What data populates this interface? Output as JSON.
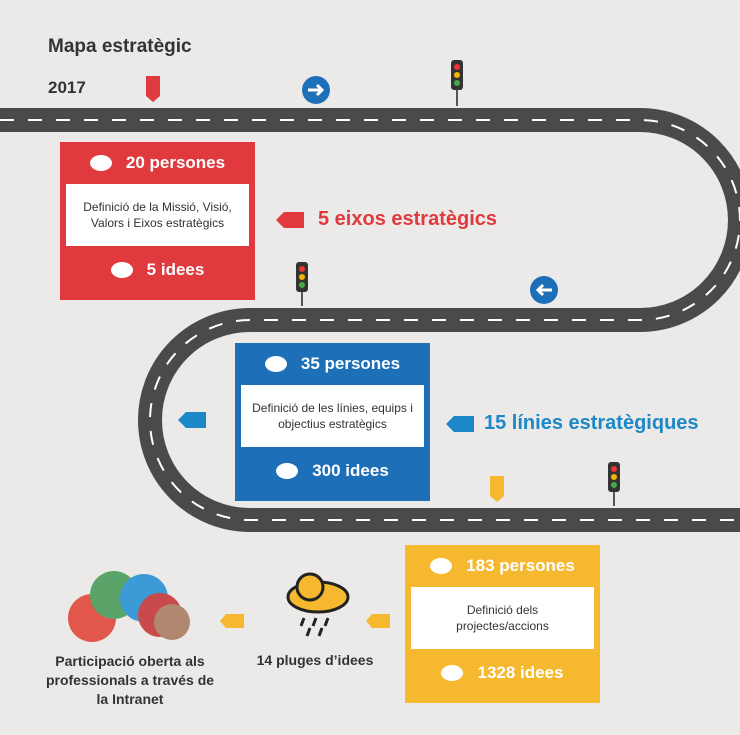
{
  "header": {
    "title": "Mapa estratègic",
    "year": "2017"
  },
  "stages": [
    {
      "people": "20 persones",
      "description": "Definició de la Missió, Visió, Valors i Eixos estratègics",
      "ideas": "5 idees",
      "label": "5 eixos estratègics"
    },
    {
      "people": "35 persones",
      "description": "Definició de les línies, equips i objectius estratègics",
      "ideas": "300 idees",
      "label": "15 línies estratègiques"
    },
    {
      "people": "183 persones",
      "description": "Definició dels projectes/accions",
      "ideas": "1328 idees"
    }
  ],
  "footer": {
    "participation": "Participació oberta als professionals a través de la Intranet",
    "brainstorms": "14 pluges d’idees"
  }
}
